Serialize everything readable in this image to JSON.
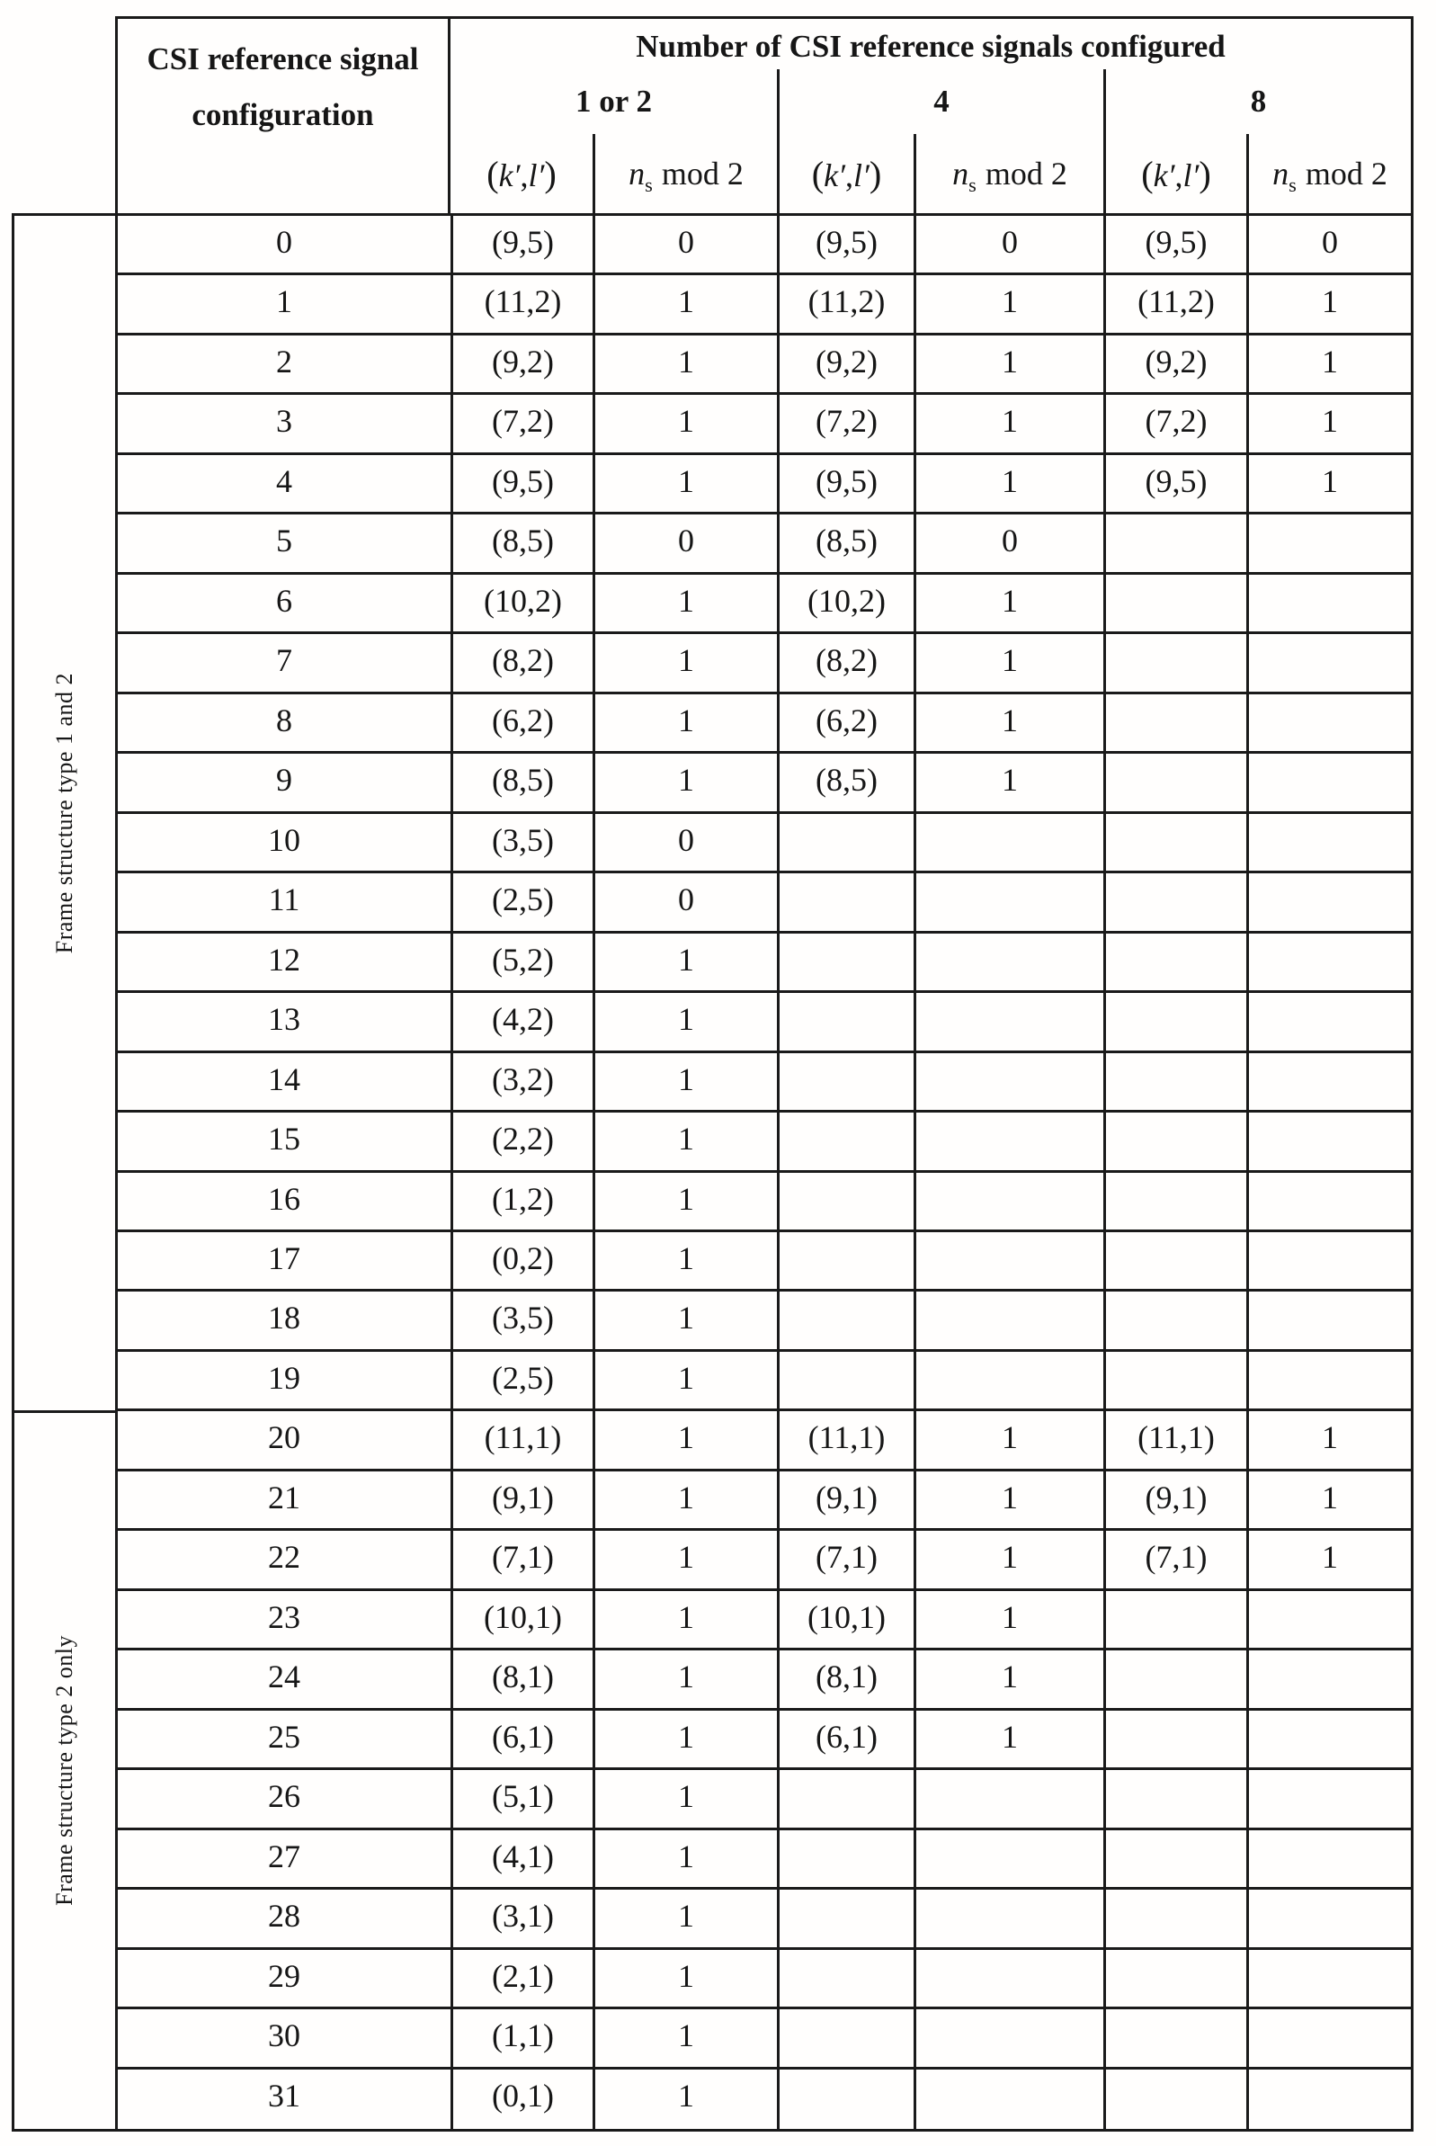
{
  "header": {
    "col1_line1": "CSI reference signal",
    "col1_line2": "configuration",
    "top": "Number of CSI reference signals configured",
    "groups": [
      "1 or 2",
      "4",
      "8"
    ],
    "kl_open": "(",
    "kl_k": "k′",
    "kl_comma": ",",
    "kl_l": "l′",
    "kl_close": ")",
    "ns_var": "n",
    "ns_sub": "s",
    "ns_mod": "mod 2"
  },
  "sections": [
    {
      "label": "Frame structure type 1 and 2",
      "row_count": 20
    },
    {
      "label": "Frame structure type 2 only",
      "row_count": 12
    }
  ],
  "rows": [
    {
      "config": "0",
      "cells": [
        "(9,5)",
        "0",
        "(9,5)",
        "0",
        "(9,5)",
        "0"
      ]
    },
    {
      "config": "1",
      "cells": [
        "(11,2)",
        "1",
        "(11,2)",
        "1",
        "(11,2)",
        "1"
      ]
    },
    {
      "config": "2",
      "cells": [
        "(9,2)",
        "1",
        "(9,2)",
        "1",
        "(9,2)",
        "1"
      ]
    },
    {
      "config": "3",
      "cells": [
        "(7,2)",
        "1",
        "(7,2)",
        "1",
        "(7,2)",
        "1"
      ]
    },
    {
      "config": "4",
      "cells": [
        "(9,5)",
        "1",
        "(9,5)",
        "1",
        "(9,5)",
        "1"
      ]
    },
    {
      "config": "5",
      "cells": [
        "(8,5)",
        "0",
        "(8,5)",
        "0",
        "",
        ""
      ]
    },
    {
      "config": "6",
      "cells": [
        "(10,2)",
        "1",
        "(10,2)",
        "1",
        "",
        ""
      ]
    },
    {
      "config": "7",
      "cells": [
        "(8,2)",
        "1",
        "(8,2)",
        "1",
        "",
        ""
      ]
    },
    {
      "config": "8",
      "cells": [
        "(6,2)",
        "1",
        "(6,2)",
        "1",
        "",
        ""
      ]
    },
    {
      "config": "9",
      "cells": [
        "(8,5)",
        "1",
        "(8,5)",
        "1",
        "",
        ""
      ]
    },
    {
      "config": "10",
      "cells": [
        "(3,5)",
        "0",
        "",
        "",
        "",
        ""
      ]
    },
    {
      "config": "11",
      "cells": [
        "(2,5)",
        "0",
        "",
        "",
        "",
        ""
      ]
    },
    {
      "config": "12",
      "cells": [
        "(5,2)",
        "1",
        "",
        "",
        "",
        ""
      ]
    },
    {
      "config": "13",
      "cells": [
        "(4,2)",
        "1",
        "",
        "",
        "",
        ""
      ]
    },
    {
      "config": "14",
      "cells": [
        "(3,2)",
        "1",
        "",
        "",
        "",
        ""
      ]
    },
    {
      "config": "15",
      "cells": [
        "(2,2)",
        "1",
        "",
        "",
        "",
        ""
      ]
    },
    {
      "config": "16",
      "cells": [
        "(1,2)",
        "1",
        "",
        "",
        "",
        ""
      ]
    },
    {
      "config": "17",
      "cells": [
        "(0,2)",
        "1",
        "",
        "",
        "",
        ""
      ]
    },
    {
      "config": "18",
      "cells": [
        "(3,5)",
        "1",
        "",
        "",
        "",
        ""
      ]
    },
    {
      "config": "19",
      "cells": [
        "(2,5)",
        "1",
        "",
        "",
        "",
        ""
      ]
    },
    {
      "config": "20",
      "cells": [
        "(11,1)",
        "1",
        "(11,1)",
        "1",
        "(11,1)",
        "1"
      ]
    },
    {
      "config": "21",
      "cells": [
        "(9,1)",
        "1",
        "(9,1)",
        "1",
        "(9,1)",
        "1"
      ]
    },
    {
      "config": "22",
      "cells": [
        "(7,1)",
        "1",
        "(7,1)",
        "1",
        "(7,1)",
        "1"
      ]
    },
    {
      "config": "23",
      "cells": [
        "(10,1)",
        "1",
        "(10,1)",
        "1",
        "",
        ""
      ]
    },
    {
      "config": "24",
      "cells": [
        "(8,1)",
        "1",
        "(8,1)",
        "1",
        "",
        ""
      ]
    },
    {
      "config": "25",
      "cells": [
        "(6,1)",
        "1",
        "(6,1)",
        "1",
        "",
        ""
      ]
    },
    {
      "config": "26",
      "cells": [
        "(5,1)",
        "1",
        "",
        "",
        "",
        ""
      ]
    },
    {
      "config": "27",
      "cells": [
        "(4,1)",
        "1",
        "",
        "",
        "",
        ""
      ]
    },
    {
      "config": "28",
      "cells": [
        "(3,1)",
        "1",
        "",
        "",
        "",
        ""
      ]
    },
    {
      "config": "29",
      "cells": [
        "(2,1)",
        "1",
        "",
        "",
        "",
        ""
      ]
    },
    {
      "config": "30",
      "cells": [
        "(1,1)",
        "1",
        "",
        "",
        "",
        ""
      ]
    },
    {
      "config": "31",
      "cells": [
        "(0,1)",
        "1",
        "",
        "",
        "",
        ""
      ]
    }
  ]
}
